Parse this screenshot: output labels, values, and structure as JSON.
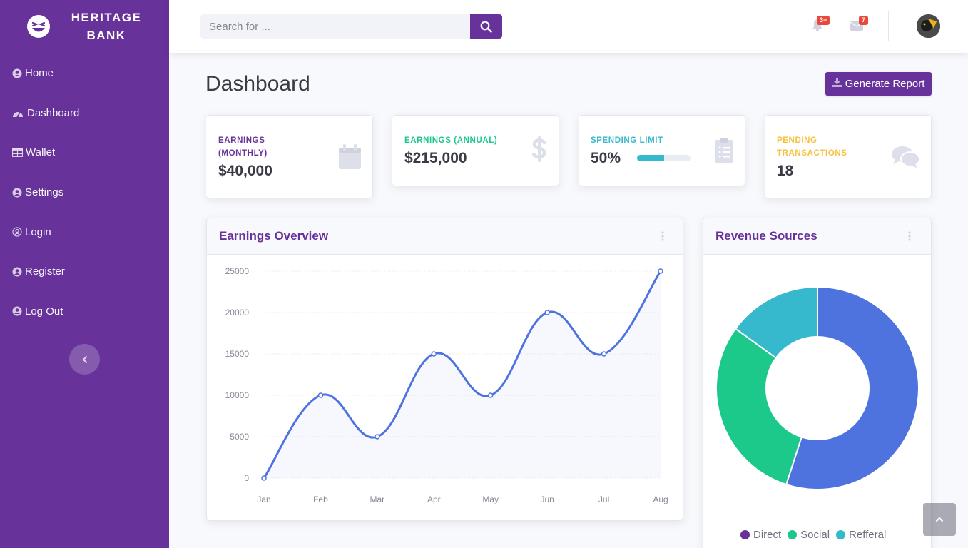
{
  "brand": {
    "line1": "HERITAGE",
    "line2": "BANK",
    "logo_icon": "laughing-face-icon"
  },
  "sidebar": {
    "items": [
      {
        "label": "Home",
        "icon": "user-circle-icon"
      },
      {
        "label": "Dashboard",
        "icon": "tachometer-icon"
      },
      {
        "label": "Wallet",
        "icon": "table-icon"
      },
      {
        "label": "Settings",
        "icon": "user-circle-icon"
      },
      {
        "label": "Login",
        "icon": "user-circle-outline-icon"
      },
      {
        "label": "Register",
        "icon": "user-circle-icon"
      },
      {
        "label": "Log Out",
        "icon": "user-circle-icon"
      }
    ],
    "toggle_icon": "chevron-left-icon"
  },
  "topbar": {
    "search_placeholder": "Search for ...",
    "search_value": "",
    "alerts_badge": "3+",
    "messages_badge": "7"
  },
  "page": {
    "title": "Dashboard",
    "report_button": "Generate Report"
  },
  "stats": [
    {
      "label": "Earnings (Monthly)",
      "value": "$40,000",
      "color": "#67329a",
      "icon": "calendar-icon"
    },
    {
      "label": "Earnings (Annual)",
      "value": "$215,000",
      "color": "#1cc88a",
      "icon": "dollar-icon"
    },
    {
      "label": "Spending Limit",
      "value": "50%",
      "color": "#36b9cc",
      "icon": "clipboard-list-icon",
      "progress": 0.5
    },
    {
      "label": "Pending Transactions",
      "value": "18",
      "color": "#f6c23e",
      "icon": "comments-icon"
    }
  ],
  "earnings_card": {
    "title": "Earnings Overview"
  },
  "revenue_card": {
    "title": "Revenue Sources"
  },
  "chart_data": [
    {
      "type": "line",
      "categories": [
        "Jan",
        "Feb",
        "Mar",
        "Apr",
        "May",
        "Jun",
        "Jul",
        "Aug"
      ],
      "values": [
        0,
        10000,
        5000,
        15000,
        10000,
        20000,
        15000,
        25000
      ],
      "y_ticks": [
        "0",
        "5000",
        "10000",
        "15000",
        "20000",
        "25000"
      ],
      "ylim": [
        0,
        25000
      ],
      "grid": true,
      "color": "#4e73df"
    },
    {
      "type": "pie",
      "labels": [
        "Direct",
        "Social",
        "Refferal"
      ],
      "values": [
        55,
        30,
        15
      ],
      "colors": [
        "#4e73df",
        "#1cc88a",
        "#36b9cc"
      ],
      "legend_colors": [
        "#67329a",
        "#1cc88a",
        "#36b9cc"
      ],
      "legend_position": "bottom"
    }
  ]
}
